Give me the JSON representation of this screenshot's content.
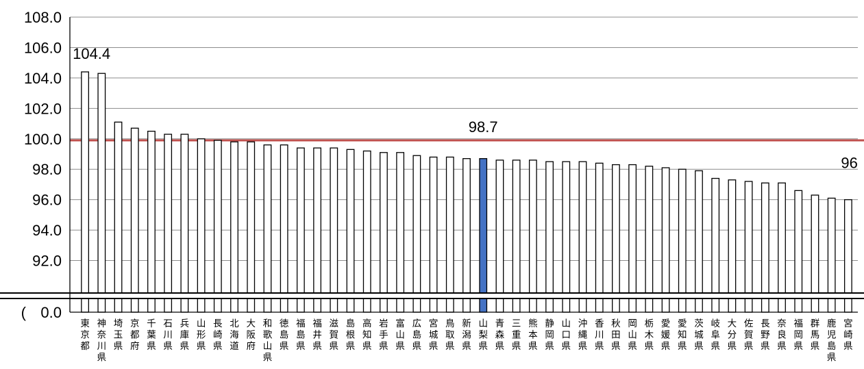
{
  "chart_data": {
    "type": "bar",
    "categories": [
      "東京都",
      "神奈川県",
      "埼玉県",
      "京都府",
      "千葉県",
      "石川県",
      "兵庫県",
      "山形県",
      "長崎県",
      "北海道",
      "大阪府",
      "和歌山県",
      "徳島県",
      "福島県",
      "福井県",
      "滋賀県",
      "島根県",
      "高知県",
      "岩手県",
      "富山県",
      "広島県",
      "宮城県",
      "鳥取県",
      "新潟県",
      "山梨県",
      "青森県",
      "三重県",
      "熊本県",
      "静岡県",
      "山口県",
      "沖縄県",
      "香川県",
      "秋田県",
      "岡山県",
      "栃木県",
      "愛媛県",
      "愛知県",
      "茨城県",
      "岐阜県",
      "大分県",
      "佐賀県",
      "長野県",
      "奈良県",
      "福岡県",
      "群馬県",
      "鹿児島県",
      "宮崎県"
    ],
    "values": [
      104.4,
      104.3,
      101.1,
      100.7,
      100.5,
      100.3,
      100.3,
      100.0,
      99.9,
      99.8,
      99.8,
      99.6,
      99.6,
      99.4,
      99.4,
      99.4,
      99.3,
      99.2,
      99.1,
      99.1,
      98.9,
      98.8,
      98.8,
      98.7,
      98.7,
      98.6,
      98.6,
      98.6,
      98.5,
      98.5,
      98.5,
      98.4,
      98.3,
      98.3,
      98.2,
      98.1,
      98.0,
      97.9,
      97.4,
      97.3,
      97.2,
      97.1,
      97.1,
      96.6,
      96.3,
      96.1,
      96.0
    ],
    "highlight_index": 24,
    "highlight_color": "#4472C4",
    "bar_fill": "#ffffff",
    "bar_stroke": "#000000",
    "reference_line": {
      "value": 99.9,
      "color": "#C0504D"
    },
    "y_ticks_upper": [
      "108.0",
      "106.0",
      "104.0",
      "102.0",
      "100.0",
      "98.0",
      "96.0",
      "94.0",
      "92.0"
    ],
    "y_tick_lower": "0.0",
    "y_tick_lower_prefix": "(",
    "ylim": [
      90,
      108
    ],
    "axis_break": true,
    "data_labels": [
      {
        "index": 0,
        "text": "104.4"
      },
      {
        "index": 24,
        "text": "98.7"
      },
      {
        "index": 46,
        "text": "96"
      }
    ],
    "title": "",
    "xlabel": "",
    "ylabel": ""
  }
}
